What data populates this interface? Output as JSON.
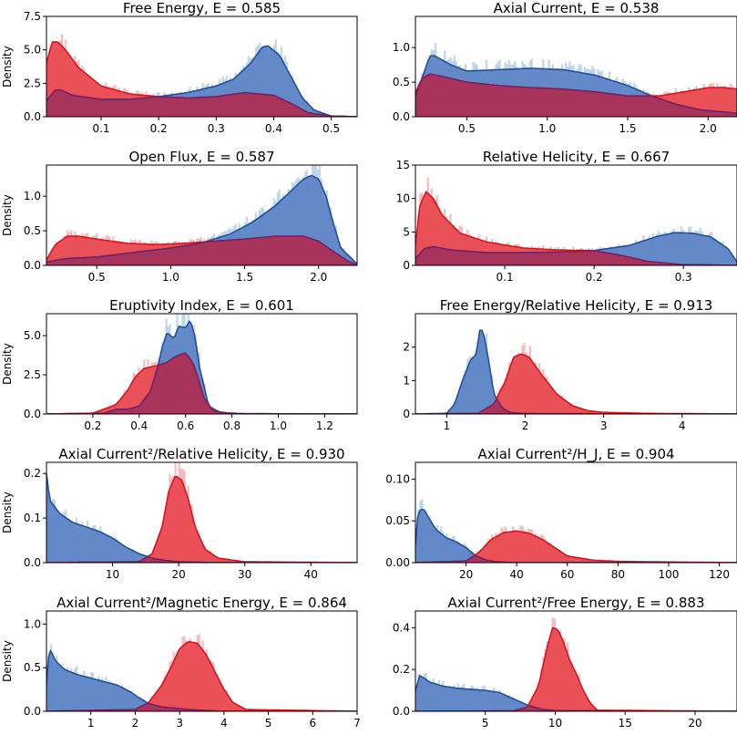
{
  "colors": {
    "blue_fill": "#5b82c4",
    "blue_line": "#1f4fa3",
    "blue_hist": "#8fb9dc",
    "red_fill": "#e8474f",
    "red_line": "#e0101c",
    "red_hist": "#f28a8f",
    "overlap_fill": "#a8345c",
    "overlap_line": "#7a1e63"
  },
  "chart_data": [
    {
      "type": "area",
      "title": "Free Energy, E = 0.585",
      "ylabel": "Density",
      "xlim": [
        0.005,
        0.545
      ],
      "ylim": [
        0,
        7.5
      ],
      "xticks": [
        0.1,
        0.2,
        0.3,
        0.4,
        0.5
      ],
      "xtick_labels": [
        "0.1",
        "0.2",
        "0.3",
        "0.4",
        "0.5"
      ],
      "yticks": [
        0,
        2.5,
        5.0,
        7.5
      ],
      "ytick_labels": [
        "0.0",
        "2.5",
        "5.0",
        "7.5"
      ],
      "series": [
        {
          "name": "blue",
          "x": [
            0.005,
            0.02,
            0.03,
            0.05,
            0.1,
            0.15,
            0.2,
            0.25,
            0.3,
            0.33,
            0.36,
            0.38,
            0.39,
            0.41,
            0.43,
            0.45,
            0.47,
            0.5,
            0.545
          ],
          "y": [
            1.2,
            2.0,
            2.0,
            1.6,
            1.3,
            1.3,
            1.5,
            1.8,
            2.3,
            2.8,
            4.0,
            5.2,
            5.3,
            4.6,
            3.0,
            1.4,
            0.5,
            0.05,
            0
          ]
        },
        {
          "name": "red",
          "x": [
            0.005,
            0.015,
            0.025,
            0.04,
            0.06,
            0.1,
            0.15,
            0.2,
            0.25,
            0.3,
            0.35,
            0.4,
            0.43,
            0.46,
            0.5,
            0.545
          ],
          "y": [
            4.0,
            5.6,
            5.6,
            4.9,
            3.7,
            2.3,
            1.7,
            1.5,
            1.4,
            1.5,
            1.8,
            1.6,
            1.0,
            0.3,
            0.05,
            0
          ]
        }
      ]
    },
    {
      "type": "area",
      "title": "Axial Current, E = 0.538",
      "ylabel": "",
      "xlim": [
        0.18,
        2.18
      ],
      "ylim": [
        0,
        1.45
      ],
      "xticks": [
        0.5,
        1.0,
        1.5,
        2.0
      ],
      "xtick_labels": [
        "0.5",
        "1.0",
        "1.5",
        "2.0"
      ],
      "yticks": [
        0,
        0.5,
        1.0
      ],
      "ytick_labels": [
        "0.0",
        "0.5",
        "1.0"
      ],
      "series": [
        {
          "name": "blue",
          "x": [
            0.18,
            0.22,
            0.27,
            0.3,
            0.4,
            0.5,
            0.7,
            0.9,
            1.1,
            1.3,
            1.5,
            1.65,
            1.8,
            1.95,
            2.1,
            2.18
          ],
          "y": [
            0.3,
            0.55,
            0.88,
            0.88,
            0.75,
            0.66,
            0.68,
            0.7,
            0.68,
            0.6,
            0.45,
            0.3,
            0.18,
            0.1,
            0.07,
            0.05
          ]
        },
        {
          "name": "red",
          "x": [
            0.18,
            0.22,
            0.27,
            0.35,
            0.5,
            0.7,
            0.9,
            1.1,
            1.3,
            1.5,
            1.7,
            1.9,
            2.0,
            2.1,
            2.18
          ],
          "y": [
            0.35,
            0.55,
            0.62,
            0.58,
            0.5,
            0.45,
            0.42,
            0.4,
            0.36,
            0.3,
            0.3,
            0.38,
            0.42,
            0.42,
            0.4
          ]
        }
      ]
    },
    {
      "type": "area",
      "title": "Open Flux, E = 0.587",
      "ylabel": "Density",
      "xlim": [
        0.16,
        2.26
      ],
      "ylim": [
        0,
        1.45
      ],
      "xticks": [
        0.5,
        1.0,
        1.5,
        2.0
      ],
      "xtick_labels": [
        "0.5",
        "1.0",
        "1.5",
        "2.0"
      ],
      "yticks": [
        0,
        0.5,
        1.0
      ],
      "ytick_labels": [
        "0.0",
        "0.5",
        "1.0"
      ],
      "series": [
        {
          "name": "blue",
          "x": [
            0.16,
            0.3,
            0.5,
            0.8,
            1.0,
            1.2,
            1.4,
            1.55,
            1.7,
            1.8,
            1.9,
            1.95,
            2.0,
            2.05,
            2.1,
            2.15,
            2.26
          ],
          "y": [
            0.05,
            0.1,
            0.12,
            0.2,
            0.25,
            0.32,
            0.45,
            0.62,
            0.85,
            1.05,
            1.25,
            1.3,
            1.25,
            1.0,
            0.6,
            0.25,
            0.02
          ]
        },
        {
          "name": "red",
          "x": [
            0.16,
            0.22,
            0.3,
            0.38,
            0.5,
            0.7,
            0.9,
            1.1,
            1.3,
            1.5,
            1.7,
            1.9,
            2.0,
            2.1,
            2.2,
            2.26
          ],
          "y": [
            0.08,
            0.3,
            0.42,
            0.42,
            0.38,
            0.32,
            0.3,
            0.32,
            0.35,
            0.38,
            0.42,
            0.42,
            0.35,
            0.2,
            0.06,
            0
          ]
        }
      ]
    },
    {
      "type": "area",
      "title": "Relative Helicity, E = 0.667",
      "ylabel": "",
      "xlim": [
        0.0,
        0.36
      ],
      "ylim": [
        0,
        15
      ],
      "xticks": [
        0.1,
        0.2,
        0.3
      ],
      "xtick_labels": [
        "0.1",
        "0.2",
        "0.3"
      ],
      "yticks": [
        0,
        5,
        10,
        15
      ],
      "ytick_labels": [
        "0",
        "5",
        "10",
        "15"
      ],
      "series": [
        {
          "name": "blue",
          "x": [
            0.0,
            0.01,
            0.02,
            0.04,
            0.08,
            0.12,
            0.16,
            0.2,
            0.24,
            0.27,
            0.29,
            0.31,
            0.33,
            0.35,
            0.36
          ],
          "y": [
            1.0,
            2.5,
            2.8,
            2.3,
            1.9,
            1.9,
            2.0,
            2.2,
            3.0,
            4.3,
            4.9,
            4.8,
            4.3,
            2.5,
            0.5
          ]
        },
        {
          "name": "red",
          "x": [
            0.0,
            0.005,
            0.012,
            0.02,
            0.03,
            0.05,
            0.08,
            0.12,
            0.16,
            0.2,
            0.23,
            0.26,
            0.3,
            0.36
          ],
          "y": [
            3.0,
            9.0,
            11.0,
            10.0,
            7.5,
            4.8,
            3.5,
            2.6,
            2.3,
            2.2,
            1.5,
            0.6,
            0.1,
            0
          ]
        }
      ]
    },
    {
      "type": "area",
      "title": "Eruptivity Index, E = 0.601",
      "ylabel": "Density",
      "xlim": [
        0.0,
        1.34
      ],
      "ylim": [
        0,
        6.4
      ],
      "xticks": [
        0.2,
        0.4,
        0.6,
        0.8,
        1.0,
        1.2
      ],
      "xtick_labels": [
        "0.2",
        "0.4",
        "0.6",
        "0.8",
        "1.0",
        "1.2"
      ],
      "yticks": [
        0,
        2.5,
        5.0
      ],
      "ytick_labels": [
        "0.0",
        "2.5",
        "5.0"
      ],
      "series": [
        {
          "name": "blue",
          "x": [
            0.0,
            0.25,
            0.3,
            0.35,
            0.4,
            0.45,
            0.48,
            0.5,
            0.52,
            0.55,
            0.57,
            0.6,
            0.62,
            0.64,
            0.66,
            0.7,
            0.75,
            0.85,
            1.34
          ],
          "y": [
            0,
            0.05,
            0.3,
            0.3,
            0.5,
            1.5,
            3.0,
            4.3,
            5.2,
            4.8,
            5.6,
            5.5,
            6.0,
            5.0,
            3.0,
            0.5,
            0.1,
            0.02,
            0
          ]
        },
        {
          "name": "red",
          "x": [
            0.0,
            0.2,
            0.3,
            0.35,
            0.38,
            0.42,
            0.48,
            0.52,
            0.56,
            0.6,
            0.63,
            0.65,
            0.68,
            0.72,
            0.8,
            1.34
          ],
          "y": [
            0,
            0.05,
            0.6,
            1.5,
            2.3,
            2.9,
            3.1,
            3.3,
            3.7,
            3.9,
            3.3,
            2.5,
            1.0,
            0.2,
            0.02,
            0
          ]
        }
      ]
    },
    {
      "type": "area",
      "title": "Free Energy/Relative Helicity, E = 0.913",
      "ylabel": "",
      "xlim": [
        0.6,
        4.7
      ],
      "ylim": [
        0,
        3.0
      ],
      "xticks": [
        1,
        2,
        3,
        4
      ],
      "xtick_labels": [
        "1",
        "2",
        "3",
        "4"
      ],
      "yticks": [
        0,
        1,
        2
      ],
      "ytick_labels": [
        "0",
        "1",
        "2"
      ],
      "series": [
        {
          "name": "blue",
          "x": [
            0.6,
            1.0,
            1.1,
            1.2,
            1.3,
            1.38,
            1.42,
            1.46,
            1.52,
            1.6,
            1.7,
            1.8,
            2.0,
            4.7
          ],
          "y": [
            0,
            0.02,
            0.3,
            1.0,
            1.6,
            1.8,
            2.5,
            2.5,
            1.8,
            0.6,
            0.2,
            0.05,
            0.01,
            0
          ]
        },
        {
          "name": "red",
          "x": [
            0.6,
            1.4,
            1.6,
            1.75,
            1.85,
            1.95,
            2.05,
            2.2,
            2.4,
            2.6,
            2.8,
            3.0,
            3.5,
            4.7
          ],
          "y": [
            0,
            0.02,
            0.3,
            1.0,
            1.7,
            1.8,
            1.7,
            1.2,
            0.6,
            0.25,
            0.1,
            0.05,
            0.02,
            0
          ]
        }
      ]
    },
    {
      "type": "area",
      "title": "Axial Current²/Relative Helicity, E = 0.930",
      "ylabel": "Density",
      "xlim": [
        0.0,
        47.0
      ],
      "ylim": [
        0,
        0.225
      ],
      "xticks": [
        10,
        20,
        30,
        40
      ],
      "xtick_labels": [
        "10",
        "20",
        "30",
        "40"
      ],
      "yticks": [
        0,
        0.1,
        0.2
      ],
      "ytick_labels": [
        "0.0",
        "0.1",
        "0.2"
      ],
      "series": [
        {
          "name": "blue",
          "x": [
            0.0,
            0.5,
            1.0,
            2.0,
            4.0,
            6.0,
            8.0,
            10.0,
            12.0,
            14.0,
            16.0,
            18.0,
            20.0,
            25.0,
            47.0
          ],
          "y": [
            0.2,
            0.14,
            0.13,
            0.11,
            0.09,
            0.08,
            0.07,
            0.055,
            0.035,
            0.02,
            0.01,
            0.005,
            0.002,
            0,
            0
          ]
        },
        {
          "name": "red",
          "x": [
            0.0,
            14.0,
            16.0,
            17.5,
            18.5,
            19.5,
            20.5,
            21.5,
            22.5,
            24.0,
            26.0,
            30.0,
            47.0
          ],
          "y": [
            0,
            0.002,
            0.02,
            0.08,
            0.16,
            0.195,
            0.185,
            0.14,
            0.08,
            0.03,
            0.01,
            0.002,
            0
          ]
        }
      ]
    },
    {
      "type": "area",
      "title": "Axial Current²/H_J, E = 0.904",
      "ylabel": "",
      "xlim": [
        0.0,
        127.0
      ],
      "ylim": [
        0,
        0.12
      ],
      "xticks": [
        20,
        40,
        60,
        80,
        100,
        120
      ],
      "xtick_labels": [
        "20",
        "40",
        "60",
        "80",
        "100",
        "120"
      ],
      "yticks": [
        0,
        0.05,
        0.1
      ],
      "ytick_labels": [
        "0.00",
        "0.05",
        "0.10"
      ],
      "series": [
        {
          "name": "blue",
          "x": [
            0.0,
            1.0,
            3.0,
            5.0,
            8.0,
            12.0,
            16.0,
            20.0,
            24.0,
            28.0,
            32.0,
            40.0,
            127.0
          ],
          "y": [
            0.02,
            0.06,
            0.065,
            0.055,
            0.04,
            0.03,
            0.025,
            0.018,
            0.008,
            0.003,
            0.001,
            0,
            0
          ]
        },
        {
          "name": "red",
          "x": [
            0.0,
            20.0,
            25.0,
            30.0,
            35.0,
            40.0,
            45.0,
            50.0,
            55.0,
            60.0,
            70.0,
            80.0,
            100.0,
            127.0
          ],
          "y": [
            0,
            0.002,
            0.012,
            0.028,
            0.036,
            0.038,
            0.035,
            0.028,
            0.018,
            0.008,
            0.003,
            0.0015,
            0.0008,
            0
          ]
        }
      ]
    },
    {
      "type": "area",
      "title": "Axial Current²/Magnetic Energy, E = 0.864",
      "ylabel": "Density",
      "xlim": [
        0.0,
        7.0
      ],
      "ylim": [
        0,
        1.15
      ],
      "xticks": [
        1,
        2,
        3,
        4,
        5,
        6,
        7
      ],
      "xtick_labels": [
        "1",
        "2",
        "3",
        "4",
        "5",
        "6",
        "7"
      ],
      "yticks": [
        0,
        0.5,
        1.0
      ],
      "ytick_labels": [
        "0.0",
        "0.5",
        "1.0"
      ],
      "series": [
        {
          "name": "blue",
          "x": [
            0.0,
            0.05,
            0.1,
            0.2,
            0.4,
            0.7,
            1.0,
            1.3,
            1.6,
            1.9,
            2.1,
            2.3,
            2.6,
            3.0,
            3.5,
            4.0,
            7.0
          ],
          "y": [
            0.3,
            0.65,
            0.7,
            0.58,
            0.48,
            0.42,
            0.38,
            0.34,
            0.3,
            0.22,
            0.15,
            0.09,
            0.05,
            0.03,
            0.01,
            0,
            0
          ]
        },
        {
          "name": "red",
          "x": [
            0.0,
            2.0,
            2.3,
            2.6,
            2.85,
            3.0,
            3.2,
            3.4,
            3.6,
            3.8,
            4.0,
            4.2,
            4.5,
            7.0
          ],
          "y": [
            0,
            0.02,
            0.1,
            0.3,
            0.55,
            0.72,
            0.8,
            0.78,
            0.65,
            0.45,
            0.25,
            0.1,
            0.02,
            0
          ]
        }
      ]
    },
    {
      "type": "area",
      "title": "Axial Current²/Free Energy, E = 0.883",
      "ylabel": "",
      "xlim": [
        0.0,
        23.0
      ],
      "ylim": [
        0,
        0.48
      ],
      "xticks": [
        5,
        10,
        15,
        20
      ],
      "xtick_labels": [
        "5",
        "10",
        "15",
        "20"
      ],
      "yticks": [
        0,
        0.2,
        0.4
      ],
      "ytick_labels": [
        "0.0",
        "0.2",
        "0.4"
      ],
      "series": [
        {
          "name": "blue",
          "x": [
            0.0,
            0.3,
            0.6,
            1.0,
            2.0,
            3.0,
            4.0,
            5.0,
            6.0,
            7.0,
            8.0,
            9.0,
            10.0,
            23.0
          ],
          "y": [
            0.1,
            0.17,
            0.16,
            0.14,
            0.12,
            0.11,
            0.105,
            0.1,
            0.09,
            0.06,
            0.03,
            0.01,
            0.003,
            0
          ]
        },
        {
          "name": "red",
          "x": [
            0.0,
            7.0,
            8.0,
            8.8,
            9.4,
            9.8,
            10.2,
            10.6,
            11.0,
            11.5,
            12.0,
            12.5,
            13.0,
            23.0
          ],
          "y": [
            0,
            0.002,
            0.02,
            0.12,
            0.3,
            0.4,
            0.39,
            0.33,
            0.25,
            0.18,
            0.1,
            0.04,
            0.005,
            0
          ]
        }
      ]
    }
  ]
}
